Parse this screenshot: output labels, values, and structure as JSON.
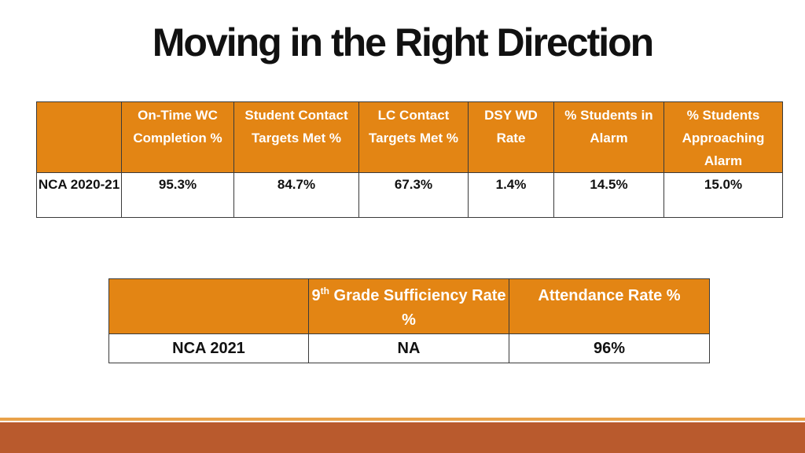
{
  "title": "Moving in the Right Direction",
  "table1": {
    "headers": [
      "",
      "On-Time WC Completion %",
      "Student Contact Targets Met %",
      "LC Contact Targets Met %",
      "DSY WD Rate",
      "% Students in Alarm",
      "% Students Approaching Alarm"
    ],
    "row": [
      "NCA 2020-21",
      "95.3%",
      "84.7%",
      "67.3%",
      "1.4%",
      "14.5%",
      "15.0%"
    ]
  },
  "table2": {
    "headers": {
      "blank": "",
      "grade_num": "9",
      "grade_sup": "th",
      "grade_rest": " Grade Sufficiency Rate %",
      "attendance": "Attendance Rate %"
    },
    "row": [
      "NCA 2021",
      "NA",
      "96%"
    ]
  },
  "colors": {
    "header_bg": "#e38514",
    "footer": "#b95a2d",
    "footer_line": "#e9a24a"
  }
}
